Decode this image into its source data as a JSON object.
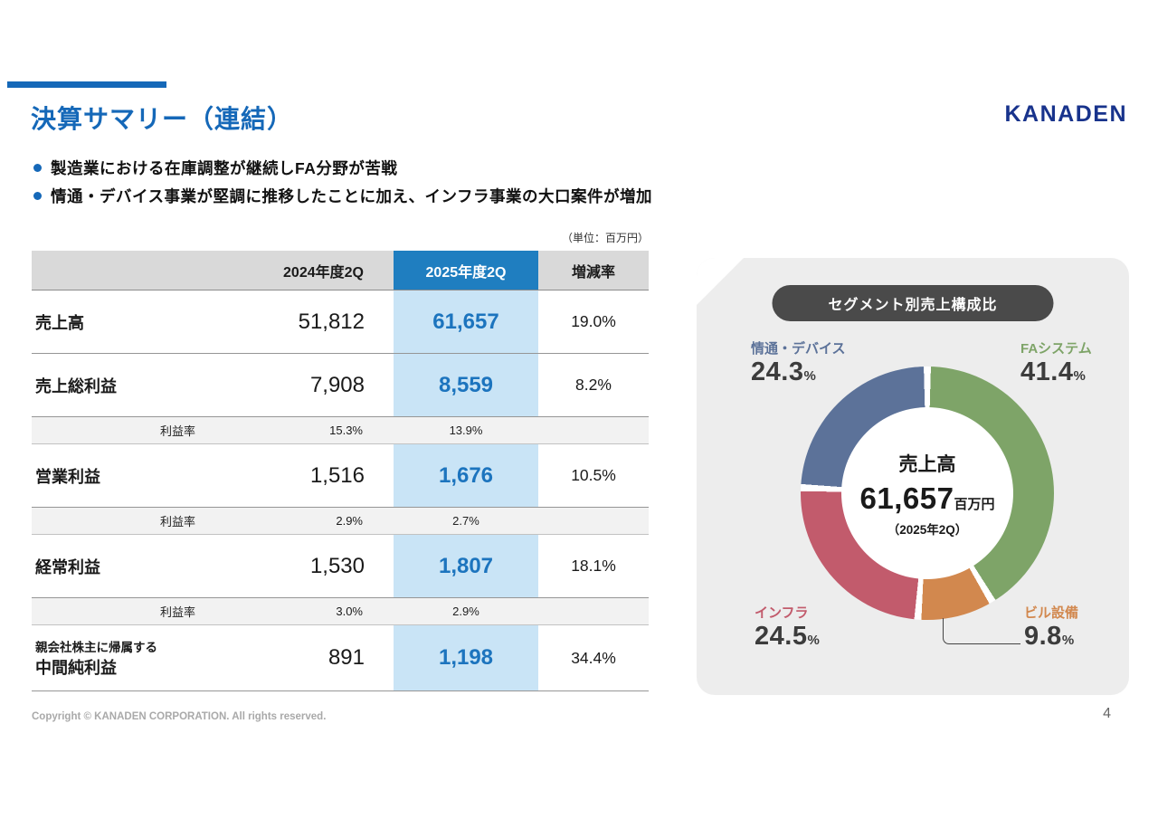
{
  "slide": {
    "title": "決算サマリー（連結）",
    "logo": "KANADEN",
    "bullets": [
      "製造業における在庫調整が継続しFA分野が苦戦",
      "情通・デバイス事業が堅調に推移したことに加え、インフラ事業の大口案件が増加"
    ],
    "unit_note": "（単位：百万円）",
    "footer": "Copyright © KANADEN CORPORATION. All rights reserved.",
    "page_number": "4"
  },
  "table": {
    "headers": [
      "",
      "2024年度2Q",
      "2025年度2Q",
      "増減率"
    ],
    "rows": [
      {
        "label": "売上高",
        "fy2024": "51,812",
        "fy2025": "61,657",
        "change": "19.0%"
      },
      {
        "label": "売上総利益",
        "fy2024": "7,908",
        "fy2025": "8,559",
        "change": "8.2%"
      },
      {
        "label": "利益率",
        "fy2024": "15.3%",
        "fy2025": "13.9%",
        "change": ""
      },
      {
        "label": "営業利益",
        "fy2024": "1,516",
        "fy2025": "1,676",
        "change": "10.5%"
      },
      {
        "label": "利益率",
        "fy2024": "2.9%",
        "fy2025": "2.7%",
        "change": ""
      },
      {
        "label": "経常利益",
        "fy2024": "1,530",
        "fy2025": "1,807",
        "change": "18.1%"
      },
      {
        "label": "利益率",
        "fy2024": "3.0%",
        "fy2025": "2.9%",
        "change": ""
      },
      {
        "label_top": "親会社株主に帰属する",
        "label_main": "中間純利益",
        "fy2024": "891",
        "fy2025": "1,198",
        "change": "34.4%"
      }
    ]
  },
  "chart_data": {
    "type": "pie",
    "title": "セグメント別売上構成比",
    "percent_symbol": "%",
    "center": {
      "label": "売上高",
      "value": "61,657",
      "unit": "百万円",
      "period": "（2025年2Q）"
    },
    "legend_position": "around-donut",
    "segments": [
      {
        "name": "FAシステム",
        "value": 41.4,
        "display": "41.4",
        "color": "#7EA468"
      },
      {
        "name": "ビル設備",
        "value": 9.8,
        "display": "9.8",
        "color": "#D2884E"
      },
      {
        "name": "インフラ",
        "value": 24.5,
        "display": "24.5",
        "color": "#C25B6C"
      },
      {
        "name": "情通・デバイス",
        "value": 24.3,
        "display": "24.3",
        "color": "#5C7299"
      }
    ]
  }
}
